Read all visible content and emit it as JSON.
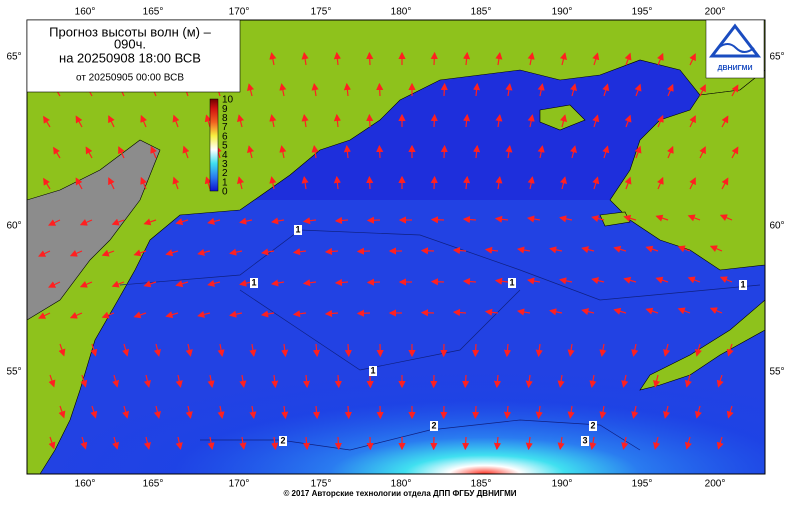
{
  "header": {
    "title_line1": "Прогноз высоты волн (м) –",
    "title_line2": "090ч.",
    "valid": "на 20250908 18:00 ВСВ",
    "issued": "от 20250905 00:00 ВСВ"
  },
  "colorbar": {
    "labels": [
      "10",
      "9",
      "8",
      "7",
      "6",
      "5",
      "4",
      "3",
      "2",
      "1",
      "0"
    ]
  },
  "axes": {
    "lon_top": [
      "160°",
      "165°",
      "170°",
      "175°",
      "180°",
      "185°",
      "190°",
      "195°",
      "200°"
    ],
    "lon_bottom": [
      "160°",
      "165°",
      "170°",
      "175°",
      "180°",
      "185°",
      "190°",
      "195°",
      "200°"
    ],
    "lat_left": [
      "65°",
      "60°",
      "55°"
    ],
    "lat_right": [
      "65°",
      "60°",
      "55°"
    ]
  },
  "contour_labels": [
    "1",
    "1",
    "1",
    "1",
    "1",
    "2",
    "2",
    "2",
    "3"
  ],
  "logo": {
    "text": "ДВНИГМИ"
  },
  "footer": "© 2017 Авторские технологии отдела ДПП ФГБУ ДВНИГМИ"
}
